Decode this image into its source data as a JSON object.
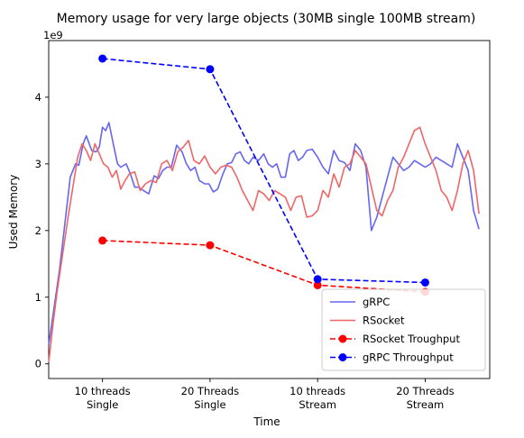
{
  "chart_data": {
    "type": "line",
    "title": "Memory usage for very large objects (30MB single 100MB stream)",
    "xlabel": "Time",
    "ylabel": "Used Memory",
    "y_offset_label": "1e9",
    "xlim": [
      -0.5,
      3.6
    ],
    "ylim": [
      -0.22,
      4.85
    ],
    "y_scale": 1000000000,
    "x_ticks": [
      {
        "x": 0,
        "label": [
          "10 threads",
          "Single"
        ]
      },
      {
        "x": 1,
        "label": [
          "20 Threads",
          "Single"
        ]
      },
      {
        "x": 2,
        "label": [
          "10 threads",
          "Stream"
        ]
      },
      {
        "x": 3,
        "label": [
          "20 Threads",
          "Stream"
        ]
      }
    ],
    "y_ticks": [
      0,
      1,
      2,
      3,
      4
    ],
    "grid": false,
    "legend_position": "lower-right",
    "series": [
      {
        "name": "gRPC",
        "color": "#6666f0",
        "style": "solid",
        "marker": "none",
        "x": [
          -0.5,
          -0.45,
          -0.4,
          -0.35,
          -0.3,
          -0.25,
          -0.22,
          -0.18,
          -0.15,
          -0.1,
          -0.06,
          -0.03,
          0,
          0.03,
          0.06,
          0.1,
          0.14,
          0.17,
          0.22,
          0.26,
          0.3,
          0.34,
          0.38,
          0.43,
          0.48,
          0.52,
          0.56,
          0.6,
          0.64,
          0.69,
          0.74,
          0.78,
          0.82,
          0.86,
          0.9,
          0.95,
          0.99,
          1.03,
          1.07,
          1.12,
          1.16,
          1.2,
          1.24,
          1.28,
          1.32,
          1.36,
          1.4,
          1.45,
          1.5,
          1.54,
          1.58,
          1.62,
          1.66,
          1.7,
          1.74,
          1.78,
          1.82,
          1.86,
          1.9,
          1.95,
          2.0,
          2.05,
          2.1,
          2.15,
          2.2,
          2.25,
          2.3,
          2.35,
          2.4,
          2.45,
          2.5,
          2.55,
          2.6,
          2.65,
          2.7,
          2.75,
          2.8,
          2.85,
          2.9,
          2.95,
          3.0,
          3.05,
          3.1,
          3.15,
          3.2,
          3.25,
          3.3,
          3.35,
          3.4,
          3.45,
          3.5
        ],
        "y": [
          0.28,
          0.85,
          1.4,
          2.1,
          2.8,
          3.0,
          2.98,
          3.3,
          3.42,
          3.2,
          3.18,
          3.25,
          3.55,
          3.5,
          3.62,
          3.3,
          3.0,
          2.95,
          3.0,
          2.85,
          2.65,
          2.65,
          2.6,
          2.55,
          2.82,
          2.78,
          2.9,
          2.95,
          2.95,
          3.28,
          3.18,
          3.0,
          2.9,
          2.95,
          2.75,
          2.7,
          2.7,
          2.58,
          2.62,
          2.85,
          3.0,
          3.02,
          3.15,
          3.18,
          3.05,
          3.0,
          3.1,
          3.05,
          3.15,
          3.0,
          2.95,
          3.0,
          2.8,
          2.8,
          3.15,
          3.2,
          3.05,
          3.1,
          3.2,
          3.22,
          3.1,
          2.95,
          2.85,
          3.2,
          3.05,
          3.02,
          2.9,
          3.3,
          3.2,
          2.95,
          2.0,
          2.2,
          2.5,
          2.8,
          3.1,
          3.0,
          2.9,
          2.95,
          3.05,
          3.0,
          2.95,
          3.0,
          3.1,
          3.05,
          3.0,
          2.95,
          3.3,
          3.1,
          2.9,
          2.3,
          2.02
        ]
      },
      {
        "name": "RSocket",
        "color": "#f06666",
        "style": "solid",
        "marker": "none",
        "x": [
          -0.5,
          -0.46,
          -0.42,
          -0.37,
          -0.32,
          -0.27,
          -0.23,
          -0.19,
          -0.15,
          -0.11,
          -0.07,
          -0.03,
          0.01,
          0.05,
          0.09,
          0.13,
          0.17,
          0.21,
          0.25,
          0.3,
          0.35,
          0.4,
          0.45,
          0.5,
          0.55,
          0.6,
          0.65,
          0.7,
          0.75,
          0.8,
          0.85,
          0.9,
          0.95,
          1.0,
          1.05,
          1.1,
          1.15,
          1.2,
          1.25,
          1.3,
          1.35,
          1.4,
          1.45,
          1.5,
          1.55,
          1.6,
          1.65,
          1.7,
          1.75,
          1.8,
          1.85,
          1.9,
          1.95,
          2.0,
          2.05,
          2.1,
          2.15,
          2.2,
          2.25,
          2.3,
          2.35,
          2.4,
          2.45,
          2.5,
          2.55,
          2.6,
          2.65,
          2.7,
          2.75,
          2.8,
          2.85,
          2.9,
          2.95,
          3.0,
          3.05,
          3.1,
          3.15,
          3.2,
          3.25,
          3.3,
          3.35,
          3.4,
          3.45,
          3.5
        ],
        "y": [
          0.02,
          0.6,
          1.1,
          1.65,
          2.2,
          2.7,
          3.1,
          3.3,
          3.2,
          3.05,
          3.3,
          3.15,
          3.0,
          2.95,
          2.8,
          2.9,
          2.62,
          2.75,
          2.85,
          2.88,
          2.6,
          2.7,
          2.75,
          2.72,
          3.0,
          3.05,
          2.9,
          3.18,
          3.25,
          3.35,
          3.05,
          3.0,
          3.12,
          2.95,
          2.85,
          2.95,
          2.98,
          2.95,
          2.8,
          2.6,
          2.45,
          2.3,
          2.6,
          2.55,
          2.45,
          2.6,
          2.55,
          2.5,
          2.3,
          2.5,
          2.52,
          2.2,
          2.22,
          2.3,
          2.6,
          2.5,
          2.85,
          2.65,
          2.95,
          3.0,
          3.2,
          3.1,
          3.0,
          2.65,
          2.3,
          2.22,
          2.45,
          2.6,
          2.95,
          3.1,
          3.3,
          3.5,
          3.55,
          3.3,
          3.1,
          2.9,
          2.6,
          2.5,
          2.3,
          2.6,
          3.0,
          3.2,
          2.9,
          2.25
        ]
      },
      {
        "name": "RSocket Troughput",
        "color": "#ff0000",
        "style": "dashed",
        "marker": "circle",
        "x": [
          0,
          1,
          2,
          3
        ],
        "y": [
          1.85,
          1.78,
          1.18,
          1.08
        ]
      },
      {
        "name": "gRPC Throughput",
        "color": "#0000ff",
        "style": "dashed",
        "marker": "circle",
        "x": [
          0,
          1,
          2,
          3
        ],
        "y": [
          4.58,
          4.42,
          1.27,
          1.22
        ]
      }
    ]
  }
}
